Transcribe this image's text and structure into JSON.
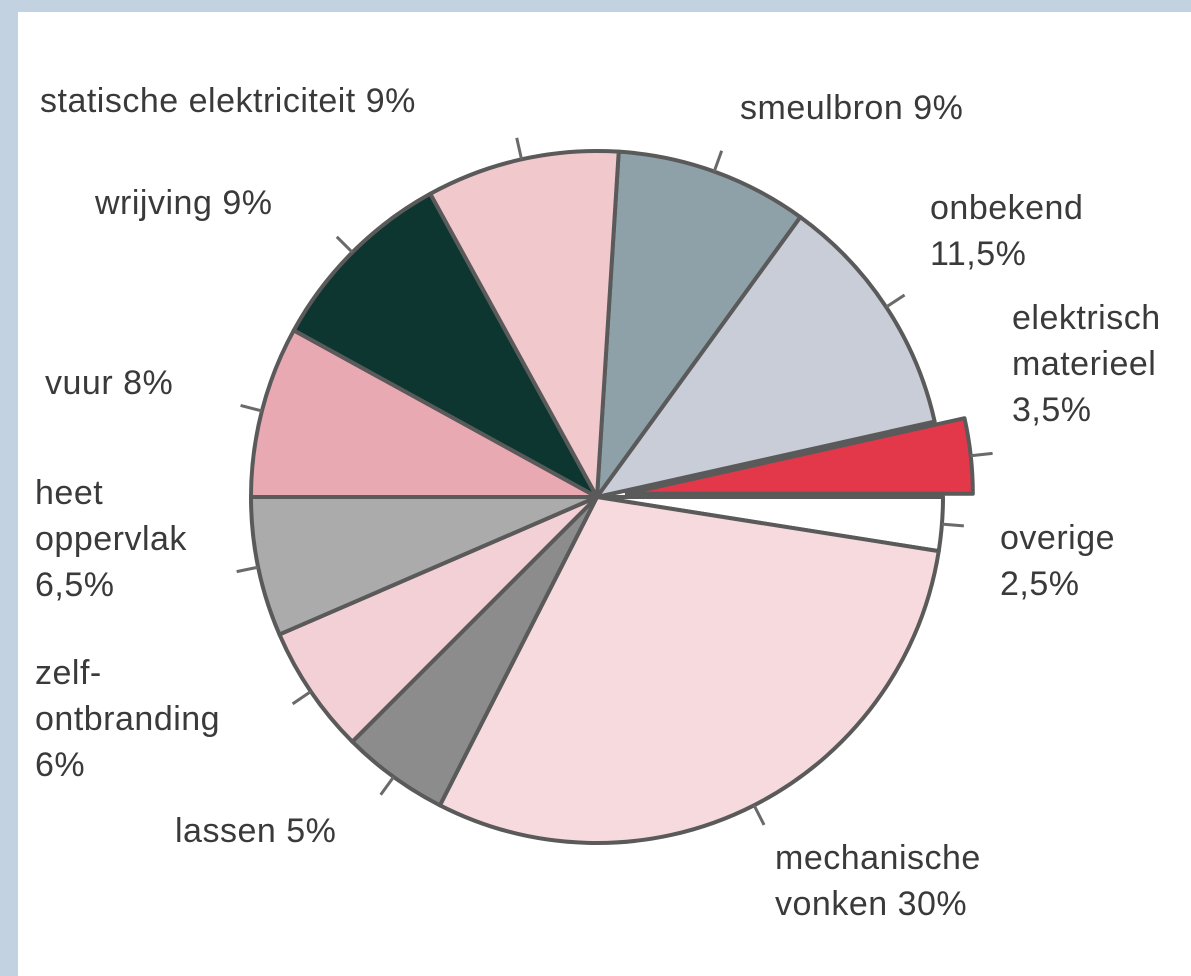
{
  "chart_data": {
    "type": "pie",
    "categories": [
      "smeulbron",
      "onbekend",
      "elektrisch materieel",
      "overige",
      "mechanische vonken",
      "lassen",
      "zelf-ontbranding",
      "heet oppervlak",
      "vuur",
      "wrijving",
      "statische elektriciteit"
    ],
    "values": [
      9,
      11.5,
      3.5,
      2.5,
      30,
      5,
      6,
      6.5,
      8,
      9,
      9
    ],
    "value_labels": [
      "9%",
      "11,5%",
      "3,5%",
      "2,5%",
      "30%",
      "5%",
      "6%",
      "6,5%",
      "8%",
      "9%",
      "9%"
    ],
    "colors": [
      "#8fa1a8",
      "#c9cdd7",
      "#e2384a",
      "#ffffff",
      "#f6dadd",
      "#8c8c8c",
      "#f3d0d5",
      "#ababab",
      "#e8a9b3",
      "#0d3631",
      "#f1c9cd"
    ],
    "exploded": [
      2
    ]
  }
}
